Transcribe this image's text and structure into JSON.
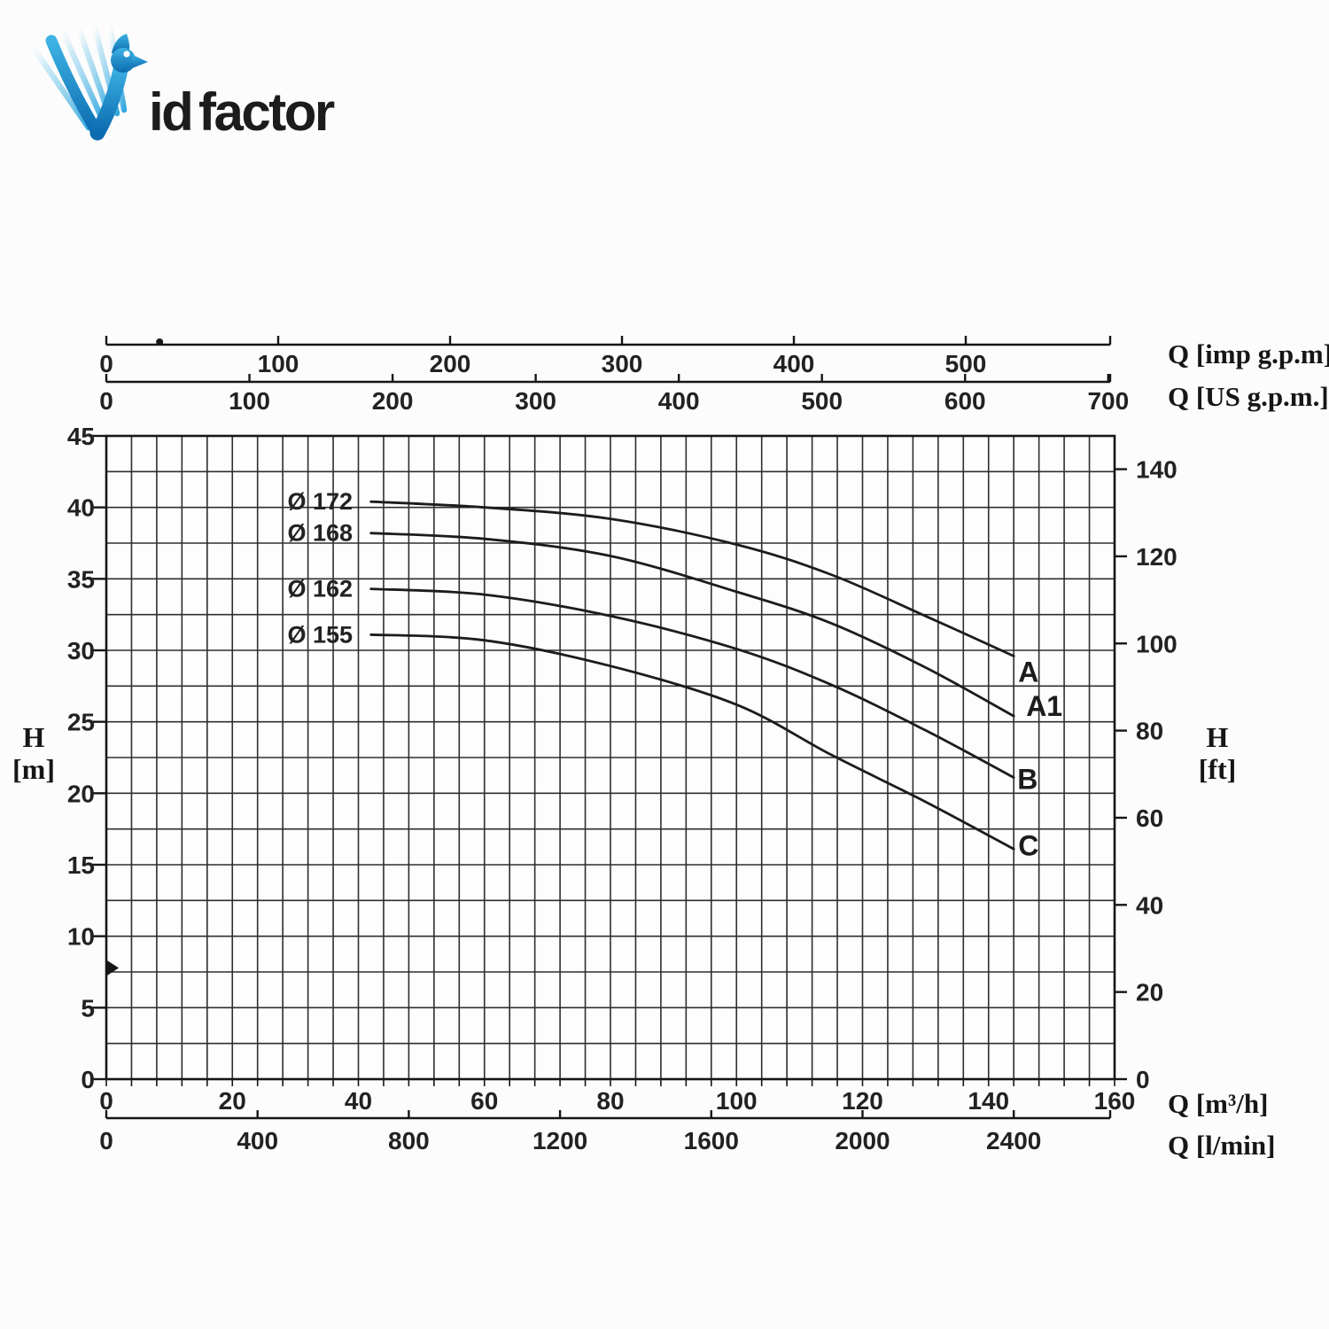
{
  "logo": {
    "text_blue": "id",
    "text_orange": "factor",
    "blue": "#1e9ed9",
    "blue_dark": "#0c6cb0",
    "orange": "#f3a41c",
    "icon": "bird-swoosh-v"
  },
  "chart_data": {
    "type": "line",
    "title": "",
    "grid": "on",
    "legend_position": "none",
    "axes": {
      "x_top_primary": {
        "label": "Q [imp g.p.m]",
        "ticks": [
          0,
          100,
          200,
          300,
          400,
          500
        ]
      },
      "x_top_secondary": {
        "label": "Q [US g.p.m.]",
        "ticks": [
          0,
          100,
          200,
          300,
          400,
          500,
          600,
          700
        ]
      },
      "x_bottom_primary": {
        "label": "Q [m³/h]",
        "ticks": [
          0,
          20,
          40,
          60,
          80,
          100,
          120,
          140,
          160
        ],
        "range": [
          0,
          160
        ],
        "minor_step": 4
      },
      "x_bottom_secondary": {
        "label": "Q [l/min]",
        "ticks": [
          0,
          400,
          800,
          1200,
          1600,
          2000,
          2400
        ]
      },
      "y_left": {
        "symbol": "H",
        "unit": "[m]",
        "label": "H [m]",
        "ticks": [
          45,
          40,
          35,
          30,
          25,
          20,
          15,
          10,
          5,
          0
        ],
        "range": [
          0,
          45
        ],
        "minor_step": 2.5
      },
      "y_right": {
        "symbol": "H",
        "unit": "[ft]",
        "label": "H [ft]",
        "ticks": [
          140,
          120,
          100,
          80,
          60,
          40,
          20,
          0
        ]
      }
    },
    "series": [
      {
        "name": "Ø 172",
        "end_label": "A",
        "color": "#1c1c1c",
        "end_label_color": "#1c1c1c",
        "points_m3h_m": [
          [
            42,
            40.4
          ],
          [
            60,
            40.0
          ],
          [
            80,
            39.2
          ],
          [
            100,
            37.4
          ],
          [
            115,
            35.3
          ],
          [
            130,
            32.4
          ],
          [
            144,
            29.6
          ]
        ]
      },
      {
        "name": "Ø 168",
        "end_label": "A1",
        "color": "#1c1c1c",
        "end_label_color": "#1c1c1c",
        "points_m3h_m": [
          [
            42,
            38.2
          ],
          [
            60,
            37.8
          ],
          [
            80,
            36.6
          ],
          [
            100,
            34.1
          ],
          [
            115,
            31.9
          ],
          [
            130,
            28.8
          ],
          [
            144,
            25.4
          ]
        ]
      },
      {
        "name": "Ø 162",
        "end_label": "B",
        "color": "#1c1c1c",
        "end_label_color": "#c9252b",
        "points_m3h_m": [
          [
            42,
            34.3
          ],
          [
            60,
            33.9
          ],
          [
            80,
            32.4
          ],
          [
            100,
            30.1
          ],
          [
            115,
            27.6
          ],
          [
            130,
            24.4
          ],
          [
            144,
            21.1
          ]
        ]
      },
      {
        "name": "Ø 155",
        "end_label": "C",
        "color": "#1c1c1c",
        "end_label_color": "#1c1c1c",
        "points_m3h_m": [
          [
            42,
            31.1
          ],
          [
            60,
            30.7
          ],
          [
            80,
            28.9
          ],
          [
            100,
            26.2
          ],
          [
            115,
            22.7
          ],
          [
            130,
            19.4
          ],
          [
            144,
            16.1
          ]
        ]
      }
    ],
    "annotations": {
      "left_axis_arrow_at_m": 7.8,
      "top_ruler_dot_at_imp_gpm": 31
    }
  }
}
